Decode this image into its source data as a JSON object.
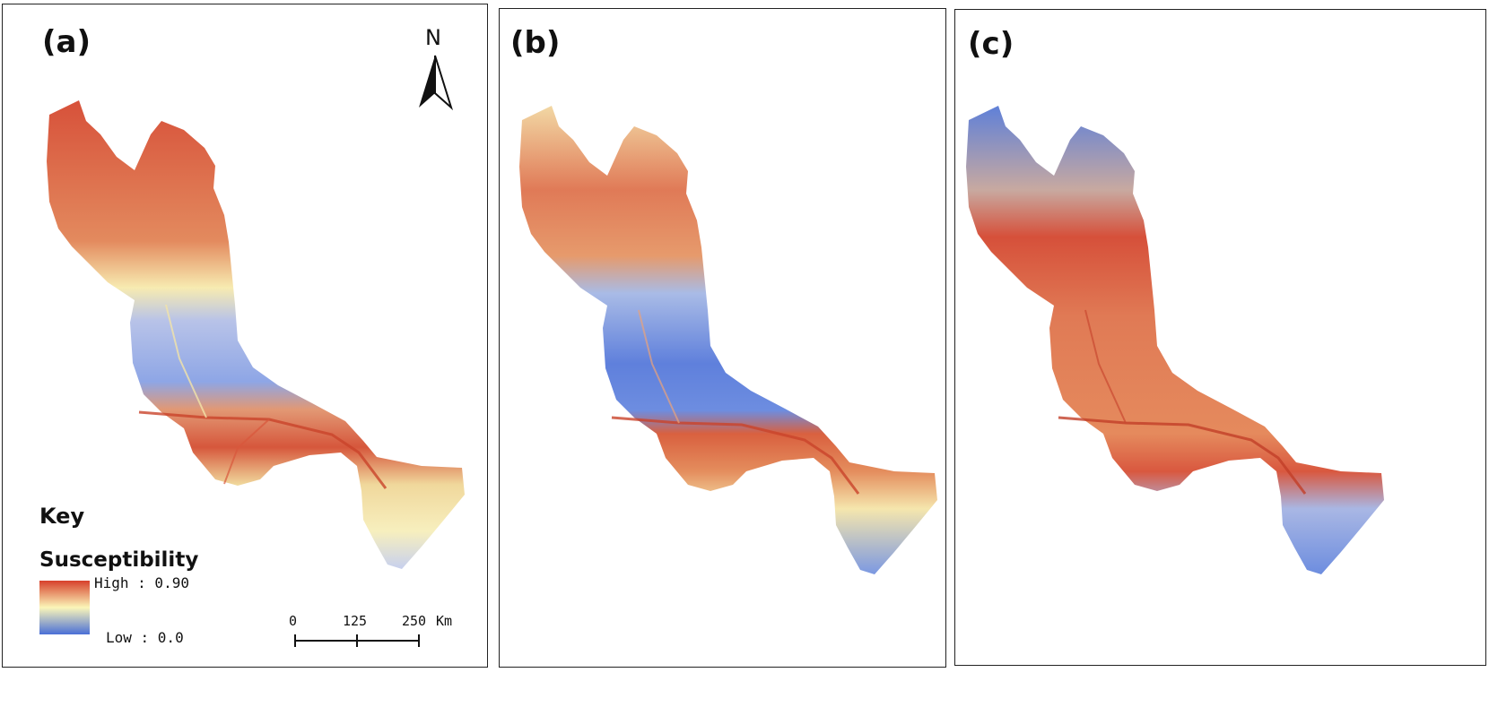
{
  "panels": [
    {
      "label": "(a)"
    },
    {
      "label": "(b)"
    },
    {
      "label": "(c)"
    }
  ],
  "north_arrow": {
    "letter": "N",
    "icon": "north-arrow-icon"
  },
  "key": {
    "title": "Key",
    "legend_title": "Susceptibility",
    "high_label": "High : 0.90",
    "low_label": "Low : 0.0",
    "colors": {
      "high": "#d7402b",
      "mid": "#fbf6b8",
      "low": "#4a6fd6"
    }
  },
  "scale_bar": {
    "ticks": [
      "0",
      "125",
      "250"
    ],
    "unit": "Km"
  }
}
